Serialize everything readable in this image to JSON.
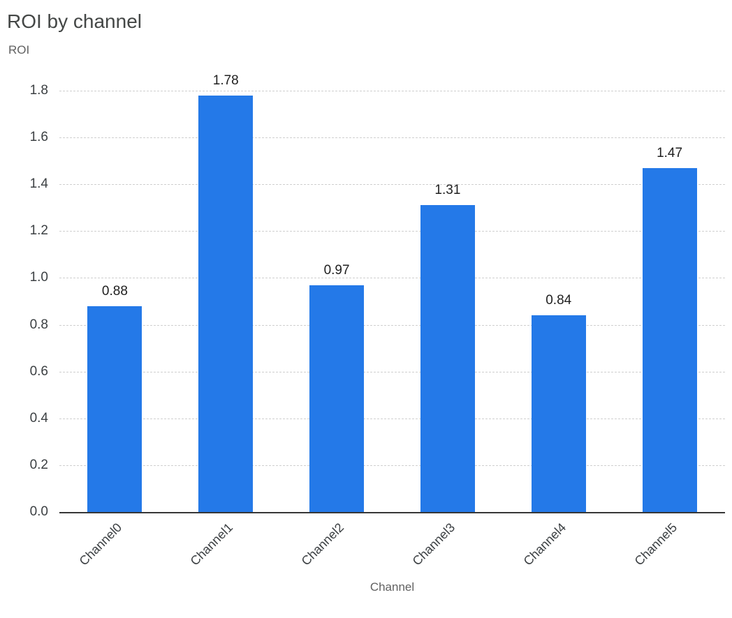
{
  "chart_data": {
    "type": "bar",
    "title": "ROI by channel",
    "ylabel": "ROI",
    "xlabel": "Channel",
    "categories": [
      "Channel0",
      "Channel1",
      "Channel2",
      "Channel3",
      "Channel4",
      "Channel5"
    ],
    "values": [
      0.88,
      1.78,
      0.97,
      1.31,
      0.84,
      1.47
    ],
    "value_labels": [
      "0.88",
      "1.78",
      "0.97",
      "1.31",
      "0.84",
      "1.47"
    ],
    "ylim": [
      0,
      1.8
    ],
    "ytick_step": 0.2,
    "yticks": [
      "0.0",
      "0.2",
      "0.4",
      "0.6",
      "0.8",
      "1.0",
      "1.2",
      "1.4",
      "1.6",
      "1.8"
    ],
    "grid": "horizontal-dashed",
    "legend": "none",
    "bar_color": "#2479e8"
  }
}
